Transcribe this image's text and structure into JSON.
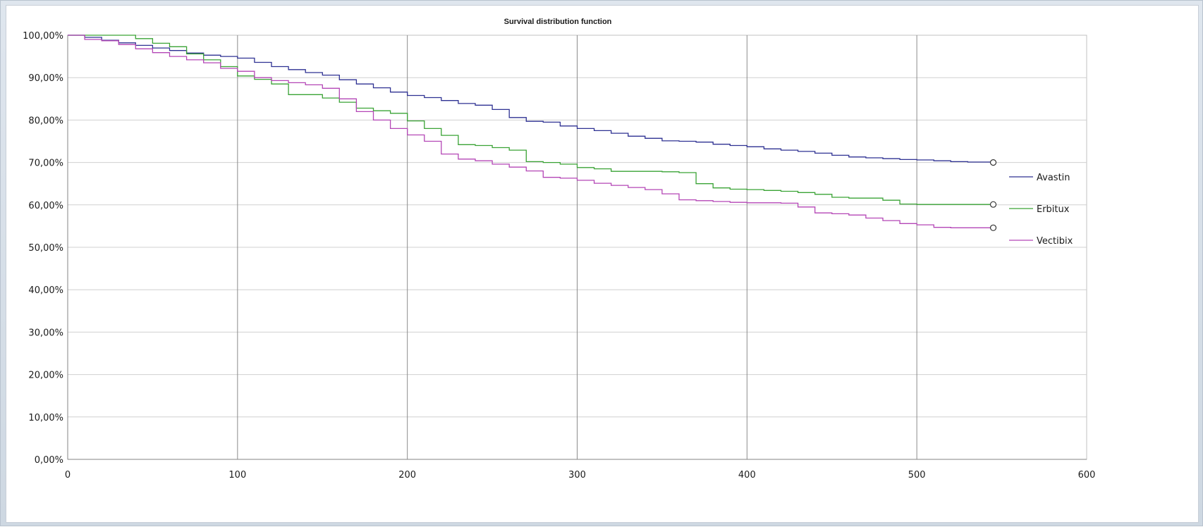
{
  "chart_data": {
    "type": "line",
    "title": "Survival distribution function",
    "xlabel": "",
    "ylabel": "",
    "xlim": [
      0,
      600
    ],
    "ylim": [
      0,
      100
    ],
    "x_ticks": [
      0,
      100,
      200,
      300,
      400,
      500,
      600
    ],
    "x_tick_labels": [
      "0",
      "100",
      "200",
      "300",
      "400",
      "500",
      "600"
    ],
    "y_ticks": [
      0,
      10,
      20,
      30,
      40,
      50,
      60,
      70,
      80,
      90,
      100
    ],
    "y_tick_labels": [
      "0,00%",
      "10,00%",
      "20,00%",
      "30,00%",
      "40,00%",
      "50,00%",
      "60,00%",
      "70,00%",
      "80,00%",
      "90,00%",
      "100,00%"
    ],
    "grid": {
      "horizontal": true,
      "vertical": true
    },
    "legend_position": "right",
    "series": [
      {
        "name": "Avastin",
        "color": "#2e3192",
        "step": true,
        "censor_marker": "open-circle",
        "points": [
          [
            0,
            100
          ],
          [
            10,
            99.5
          ],
          [
            20,
            98.8
          ],
          [
            30,
            98.2
          ],
          [
            40,
            97.6
          ],
          [
            50,
            97.0
          ],
          [
            60,
            96.4
          ],
          [
            70,
            95.8
          ],
          [
            80,
            95.3
          ],
          [
            90,
            95.0
          ],
          [
            100,
            94.6
          ],
          [
            110,
            93.6
          ],
          [
            120,
            92.6
          ],
          [
            130,
            91.9
          ],
          [
            140,
            91.2
          ],
          [
            150,
            90.6
          ],
          [
            160,
            89.5
          ],
          [
            170,
            88.5
          ],
          [
            180,
            87.6
          ],
          [
            190,
            86.6
          ],
          [
            200,
            85.8
          ],
          [
            210,
            85.3
          ],
          [
            220,
            84.6
          ],
          [
            230,
            83.9
          ],
          [
            240,
            83.5
          ],
          [
            250,
            82.5
          ],
          [
            260,
            80.6
          ],
          [
            270,
            79.7
          ],
          [
            280,
            79.5
          ],
          [
            290,
            78.6
          ],
          [
            300,
            78.0
          ],
          [
            310,
            77.5
          ],
          [
            320,
            76.9
          ],
          [
            330,
            76.2
          ],
          [
            340,
            75.7
          ],
          [
            350,
            75.1
          ],
          [
            360,
            75.0
          ],
          [
            370,
            74.8
          ],
          [
            380,
            74.3
          ],
          [
            390,
            74.0
          ],
          [
            400,
            73.7
          ],
          [
            410,
            73.2
          ],
          [
            420,
            72.9
          ],
          [
            430,
            72.6
          ],
          [
            440,
            72.2
          ],
          [
            450,
            71.7
          ],
          [
            460,
            71.3
          ],
          [
            470,
            71.1
          ],
          [
            480,
            70.9
          ],
          [
            490,
            70.7
          ],
          [
            500,
            70.6
          ],
          [
            510,
            70.4
          ],
          [
            520,
            70.2
          ],
          [
            530,
            70.1
          ],
          [
            545,
            70.0
          ]
        ]
      },
      {
        "name": "Erbitux",
        "color": "#3aa335",
        "step": true,
        "censor_marker": "open-circle",
        "points": [
          [
            0,
            100
          ],
          [
            30,
            100
          ],
          [
            40,
            99.2
          ],
          [
            50,
            98.1
          ],
          [
            60,
            97.3
          ],
          [
            70,
            95.6
          ],
          [
            80,
            94.2
          ],
          [
            90,
            92.6
          ],
          [
            100,
            90.4
          ],
          [
            110,
            89.6
          ],
          [
            120,
            88.5
          ],
          [
            130,
            86.0
          ],
          [
            140,
            86.0
          ],
          [
            150,
            85.2
          ],
          [
            160,
            84.2
          ],
          [
            170,
            82.8
          ],
          [
            180,
            82.2
          ],
          [
            190,
            81.6
          ],
          [
            200,
            79.8
          ],
          [
            210,
            78.0
          ],
          [
            220,
            76.4
          ],
          [
            230,
            74.2
          ],
          [
            240,
            74.0
          ],
          [
            250,
            73.5
          ],
          [
            260,
            72.9
          ],
          [
            270,
            70.2
          ],
          [
            280,
            70.0
          ],
          [
            290,
            69.6
          ],
          [
            300,
            68.8
          ],
          [
            310,
            68.5
          ],
          [
            320,
            67.9
          ],
          [
            330,
            67.9
          ],
          [
            340,
            67.9
          ],
          [
            350,
            67.8
          ],
          [
            360,
            67.6
          ],
          [
            370,
            65.0
          ],
          [
            380,
            64.0
          ],
          [
            390,
            63.7
          ],
          [
            400,
            63.6
          ],
          [
            410,
            63.4
          ],
          [
            420,
            63.2
          ],
          [
            430,
            62.9
          ],
          [
            440,
            62.5
          ],
          [
            450,
            61.8
          ],
          [
            460,
            61.6
          ],
          [
            470,
            61.6
          ],
          [
            480,
            61.1
          ],
          [
            490,
            60.2
          ],
          [
            500,
            60.1
          ],
          [
            510,
            60.1
          ],
          [
            520,
            60.1
          ],
          [
            545,
            60.1
          ]
        ]
      },
      {
        "name": "Vectibix",
        "color": "#b446b6",
        "step": true,
        "censor_marker": "open-circle",
        "points": [
          [
            0,
            100
          ],
          [
            10,
            99.0
          ],
          [
            20,
            98.7
          ],
          [
            30,
            97.8
          ],
          [
            40,
            96.8
          ],
          [
            50,
            95.9
          ],
          [
            60,
            95.0
          ],
          [
            70,
            94.2
          ],
          [
            80,
            93.5
          ],
          [
            90,
            92.2
          ],
          [
            100,
            91.5
          ],
          [
            110,
            90.0
          ],
          [
            120,
            89.3
          ],
          [
            130,
            88.8
          ],
          [
            140,
            88.3
          ],
          [
            150,
            87.5
          ],
          [
            160,
            85.0
          ],
          [
            170,
            82.0
          ],
          [
            180,
            80.0
          ],
          [
            190,
            78.0
          ],
          [
            200,
            76.5
          ],
          [
            210,
            75.0
          ],
          [
            220,
            72.0
          ],
          [
            230,
            70.8
          ],
          [
            240,
            70.4
          ],
          [
            250,
            69.6
          ],
          [
            260,
            68.9
          ],
          [
            270,
            68.0
          ],
          [
            280,
            66.5
          ],
          [
            290,
            66.3
          ],
          [
            300,
            65.8
          ],
          [
            310,
            65.1
          ],
          [
            320,
            64.6
          ],
          [
            330,
            64.1
          ],
          [
            340,
            63.6
          ],
          [
            350,
            62.6
          ],
          [
            360,
            61.2
          ],
          [
            370,
            61.0
          ],
          [
            380,
            60.8
          ],
          [
            390,
            60.6
          ],
          [
            400,
            60.5
          ],
          [
            410,
            60.5
          ],
          [
            420,
            60.4
          ],
          [
            430,
            59.5
          ],
          [
            440,
            58.1
          ],
          [
            450,
            57.9
          ],
          [
            460,
            57.6
          ],
          [
            470,
            56.9
          ],
          [
            480,
            56.3
          ],
          [
            490,
            55.6
          ],
          [
            500,
            55.3
          ],
          [
            510,
            54.7
          ],
          [
            520,
            54.6
          ],
          [
            530,
            54.6
          ],
          [
            545,
            54.6
          ]
        ]
      }
    ]
  }
}
